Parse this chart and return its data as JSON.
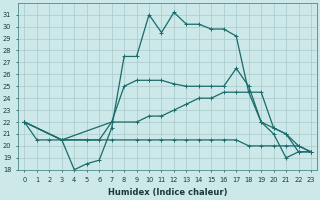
{
  "xlabel": "Humidex (Indice chaleur)",
  "bg_color": "#cce8e8",
  "grid_color": "#aac8cc",
  "line_color": "#1a6b6b",
  "xlim": [
    -0.5,
    23.5
  ],
  "ylim": [
    18,
    32
  ],
  "xticks": [
    0,
    1,
    2,
    3,
    4,
    5,
    6,
    7,
    8,
    9,
    10,
    11,
    12,
    13,
    14,
    15,
    16,
    17,
    18,
    19,
    20,
    21,
    22,
    23
  ],
  "yticks": [
    18,
    19,
    20,
    21,
    22,
    23,
    24,
    25,
    26,
    27,
    28,
    29,
    30,
    31
  ],
  "line1_x": [
    0,
    1,
    2,
    3,
    4,
    5,
    6,
    7,
    8,
    9,
    10,
    11,
    12,
    13,
    14,
    15,
    16,
    17,
    18,
    19,
    20,
    21,
    22,
    23
  ],
  "line1_y": [
    22,
    20.5,
    20.5,
    20.5,
    18,
    18.5,
    18.8,
    21.5,
    27.5,
    27.5,
    31,
    29.5,
    31.2,
    30.2,
    30.2,
    29.8,
    29.8,
    29.2,
    24.5,
    22,
    21,
    19,
    19.5,
    19.5
  ],
  "line2_x": [
    0,
    3,
    7,
    9,
    10,
    11,
    12,
    13,
    14,
    15,
    16,
    17,
    18,
    19,
    20,
    21,
    22,
    23
  ],
  "line2_y": [
    22,
    20.5,
    22,
    22,
    22.5,
    22.5,
    23,
    23.5,
    24,
    24,
    24.5,
    24.5,
    24.5,
    24.5,
    21.5,
    21,
    19.5,
    19.5
  ],
  "line3_x": [
    0,
    3,
    7,
    9,
    10,
    11,
    12,
    13,
    14,
    15,
    16,
    17,
    18,
    19,
    20,
    21,
    22,
    23
  ],
  "line3_y": [
    22,
    20.5,
    20.5,
    20.5,
    20.5,
    20.5,
    20.5,
    20.5,
    20.5,
    20.5,
    20.5,
    20.5,
    20,
    20,
    20,
    20,
    20,
    19.5
  ],
  "line4_x": [
    0,
    3,
    5,
    6,
    7,
    8,
    9,
    10,
    11,
    12,
    13,
    14,
    15,
    16,
    17,
    18,
    19,
    20,
    21,
    22,
    23
  ],
  "line4_y": [
    22,
    20.5,
    20.5,
    20.5,
    22,
    25,
    25.5,
    25.5,
    25.5,
    25.2,
    25,
    25,
    25,
    25,
    26.5,
    25,
    22,
    21.5,
    21,
    20,
    19.5
  ]
}
